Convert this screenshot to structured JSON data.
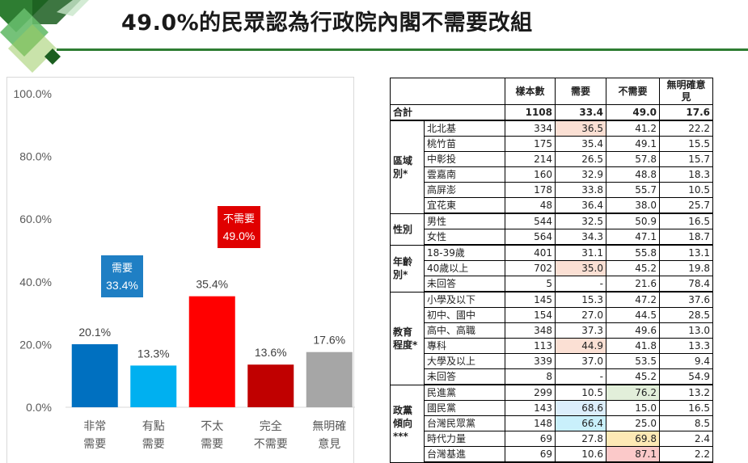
{
  "title": "49.0%的民眾認為行政院內閣不需要改組",
  "colors": {
    "accent_green": "#2e7d32",
    "bar_very_need": "#0070c0",
    "bar_some_need": "#00b0f0",
    "bar_not_really": "#ff0000",
    "bar_not_at_all": "#c00000",
    "bar_no_opinion": "#a6a6a6",
    "label_need": "#1f7fc4",
    "label_no_need": "#e00000",
    "hl_orange": "#fbe0d4",
    "hl_blue": "#dceefb",
    "hl_cyan": "#c9f0fb",
    "hl_green": "#e2efda",
    "hl_yellow": "#fde9b5",
    "hl_pink": "#fbc9c9"
  },
  "chart_data": {
    "type": "bar",
    "categories": [
      "非常\n需要",
      "有點\n需要",
      "不太\n需要",
      "完全\n不需要",
      "無明確\n意見"
    ],
    "values": [
      20.1,
      13.3,
      35.4,
      13.6,
      17.6
    ],
    "value_labels": [
      "20.1%",
      "13.3%",
      "35.4%",
      "13.6%",
      "17.6%"
    ],
    "ylim": [
      0,
      100
    ],
    "yticks": [
      "0.0%",
      "20.0%",
      "40.0%",
      "60.0%",
      "80.0%",
      "100.0%"
    ],
    "grid": false,
    "callouts": [
      {
        "label": "需要",
        "value": "33.4%",
        "over": [
          0,
          1
        ]
      },
      {
        "label": "不需要",
        "value": "49.0%",
        "over": [
          2,
          3
        ]
      }
    ]
  },
  "table": {
    "headers": [
      "樣本數",
      "需要",
      "不需要",
      "無明確意見"
    ],
    "total": {
      "label": "合計",
      "values": [
        "1108",
        "33.4",
        "49.0",
        "17.6"
      ]
    },
    "groups": [
      {
        "name": "區域別*",
        "rows": [
          {
            "label": "北北基",
            "values": [
              "334",
              "36.5",
              "41.2",
              "22.2"
            ],
            "hl": [
              null,
              "hl_orange",
              null,
              null
            ]
          },
          {
            "label": "桃竹苗",
            "values": [
              "175",
              "35.4",
              "49.1",
              "15.5"
            ],
            "hl": [
              null,
              null,
              null,
              null
            ]
          },
          {
            "label": "中彰投",
            "values": [
              "214",
              "26.5",
              "57.8",
              "15.7"
            ],
            "hl": [
              null,
              null,
              null,
              null
            ]
          },
          {
            "label": "雲嘉南",
            "values": [
              "160",
              "32.9",
              "48.8",
              "18.3"
            ],
            "hl": [
              null,
              null,
              null,
              null
            ]
          },
          {
            "label": "高屏澎",
            "values": [
              "178",
              "33.8",
              "55.7",
              "10.5"
            ],
            "hl": [
              null,
              null,
              null,
              null
            ]
          },
          {
            "label": "宜花東",
            "values": [
              "48",
              "36.4",
              "38.0",
              "25.7"
            ],
            "hl": [
              null,
              null,
              null,
              null
            ]
          }
        ]
      },
      {
        "name": "性別",
        "rows": [
          {
            "label": "男性",
            "values": [
              "544",
              "32.5",
              "50.9",
              "16.5"
            ],
            "hl": [
              null,
              null,
              null,
              null
            ]
          },
          {
            "label": "女性",
            "values": [
              "564",
              "34.3",
              "47.1",
              "18.7"
            ],
            "hl": [
              null,
              null,
              null,
              null
            ]
          }
        ]
      },
      {
        "name": "年齡別*",
        "rows": [
          {
            "label": "18-39歲",
            "values": [
              "401",
              "31.1",
              "55.8",
              "13.1"
            ],
            "hl": [
              null,
              null,
              null,
              null
            ]
          },
          {
            "label": "40歲以上",
            "values": [
              "702",
              "35.0",
              "45.2",
              "19.8"
            ],
            "hl": [
              null,
              "hl_orange",
              null,
              null
            ]
          },
          {
            "label": "未回答",
            "values": [
              "5",
              "-",
              "21.6",
              "78.4"
            ],
            "hl": [
              null,
              null,
              null,
              null
            ]
          }
        ]
      },
      {
        "name": "教育程度*",
        "rows": [
          {
            "label": "小學及以下",
            "values": [
              "145",
              "15.3",
              "47.2",
              "37.6"
            ],
            "hl": [
              null,
              null,
              null,
              null
            ]
          },
          {
            "label": "初中、國中",
            "values": [
              "154",
              "27.0",
              "44.5",
              "28.5"
            ],
            "hl": [
              null,
              null,
              null,
              null
            ]
          },
          {
            "label": "高中、高職",
            "values": [
              "348",
              "37.3",
              "49.6",
              "13.0"
            ],
            "hl": [
              null,
              null,
              null,
              null
            ]
          },
          {
            "label": "專科",
            "values": [
              "113",
              "44.9",
              "41.8",
              "13.3"
            ],
            "hl": [
              null,
              "hl_orange",
              null,
              null
            ]
          },
          {
            "label": "大學及以上",
            "values": [
              "339",
              "37.0",
              "53.5",
              "9.4"
            ],
            "hl": [
              null,
              null,
              null,
              null
            ]
          },
          {
            "label": "未回答",
            "values": [
              "8",
              "-",
              "45.2",
              "54.9"
            ],
            "hl": [
              null,
              null,
              null,
              null
            ]
          }
        ]
      },
      {
        "name": "政黨傾向***",
        "rows": [
          {
            "label": "民進黨",
            "values": [
              "299",
              "10.5",
              "76.2",
              "13.2"
            ],
            "hl": [
              null,
              null,
              "hl_green",
              null
            ]
          },
          {
            "label": "國民黨",
            "values": [
              "143",
              "68.6",
              "15.0",
              "16.5"
            ],
            "hl": [
              null,
              "hl_blue",
              null,
              null
            ]
          },
          {
            "label": "台灣民眾黨",
            "values": [
              "148",
              "66.4",
              "25.0",
              "8.5"
            ],
            "hl": [
              null,
              "hl_cyan",
              null,
              null
            ]
          },
          {
            "label": "時代力量",
            "values": [
              "69",
              "27.8",
              "69.8",
              "2.4"
            ],
            "hl": [
              null,
              null,
              "hl_yellow",
              null
            ]
          },
          {
            "label": "台灣基進",
            "values": [
              "69",
              "10.6",
              "87.1",
              "2.2"
            ],
            "hl": [
              null,
              null,
              "hl_pink",
              null
            ]
          }
        ]
      }
    ]
  }
}
